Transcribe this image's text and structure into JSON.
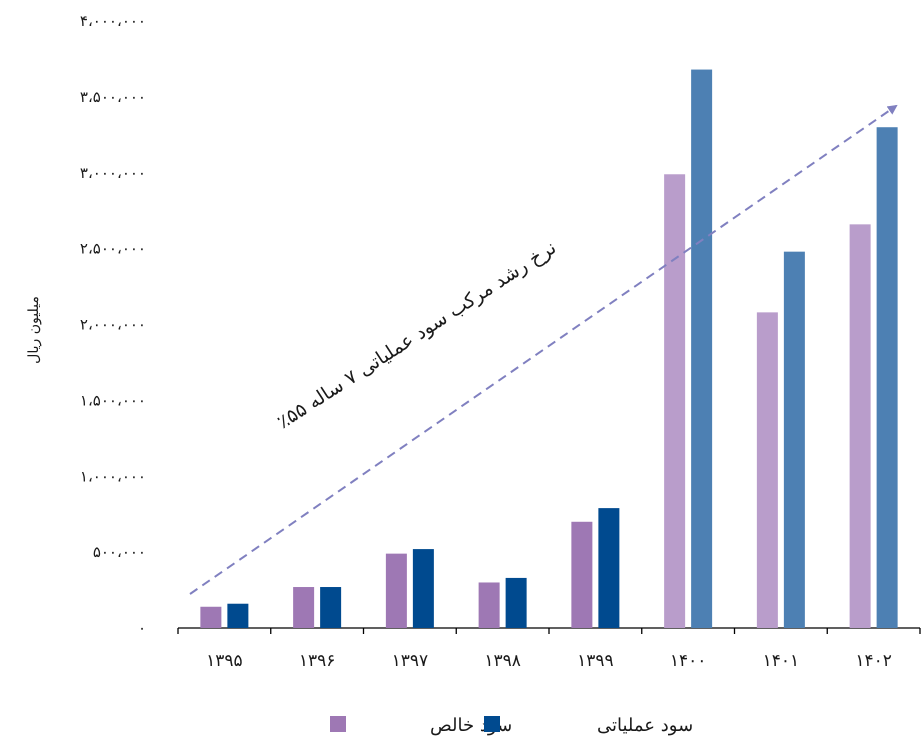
{
  "chart_data": {
    "type": "bar",
    "ylabel": "میلیون ریال",
    "ylim": [
      0,
      4000000
    ],
    "y_ticks": [
      0,
      500000,
      1000000,
      1500000,
      2000000,
      2500000,
      3000000,
      3500000,
      4000000
    ],
    "y_tick_labels": [
      "۰",
      "۵۰۰،۰۰۰",
      "۱،۰۰۰،۰۰۰",
      "۱،۵۰۰،۰۰۰",
      "۲،۰۰۰،۰۰۰",
      "۲،۵۰۰،۰۰۰",
      "۳،۰۰۰،۰۰۰",
      "۳،۵۰۰،۰۰۰",
      "۴،۰۰۰،۰۰۰"
    ],
    "categories": [
      "۱۳۹۵",
      "۱۳۹۶",
      "۱۳۹۷",
      "۱۳۹۸",
      "۱۳۹۹",
      "۱۴۰۰",
      "۱۴۰۱",
      "۱۴۰۲"
    ],
    "series": [
      {
        "name": "سود خالص",
        "values": [
          140000,
          270000,
          490000,
          300000,
          700000,
          2990000,
          2080000,
          2660000
        ],
        "colors": [
          "#9e78b4",
          "#9e78b4",
          "#9e78b4",
          "#9e78b4",
          "#9e78b4",
          "#b99dcb",
          "#b99dcb",
          "#b99dcb"
        ]
      },
      {
        "name": "سود عملیاتی",
        "values": [
          160000,
          270000,
          520000,
          330000,
          790000,
          3680000,
          2480000,
          3300000
        ],
        "colors": [
          "#004a8f",
          "#004a8f",
          "#004a8f",
          "#004a8f",
          "#004a8f",
          "#4d80b3",
          "#4d80b3",
          "#4d80b3"
        ]
      }
    ],
    "legend_position": "bottom",
    "grid": false,
    "annotation": {
      "text": "نرخ رشد مرکب سود عملیاتی ۷ ساله ۵۵٪",
      "arrow_color": "#8080c0"
    }
  }
}
